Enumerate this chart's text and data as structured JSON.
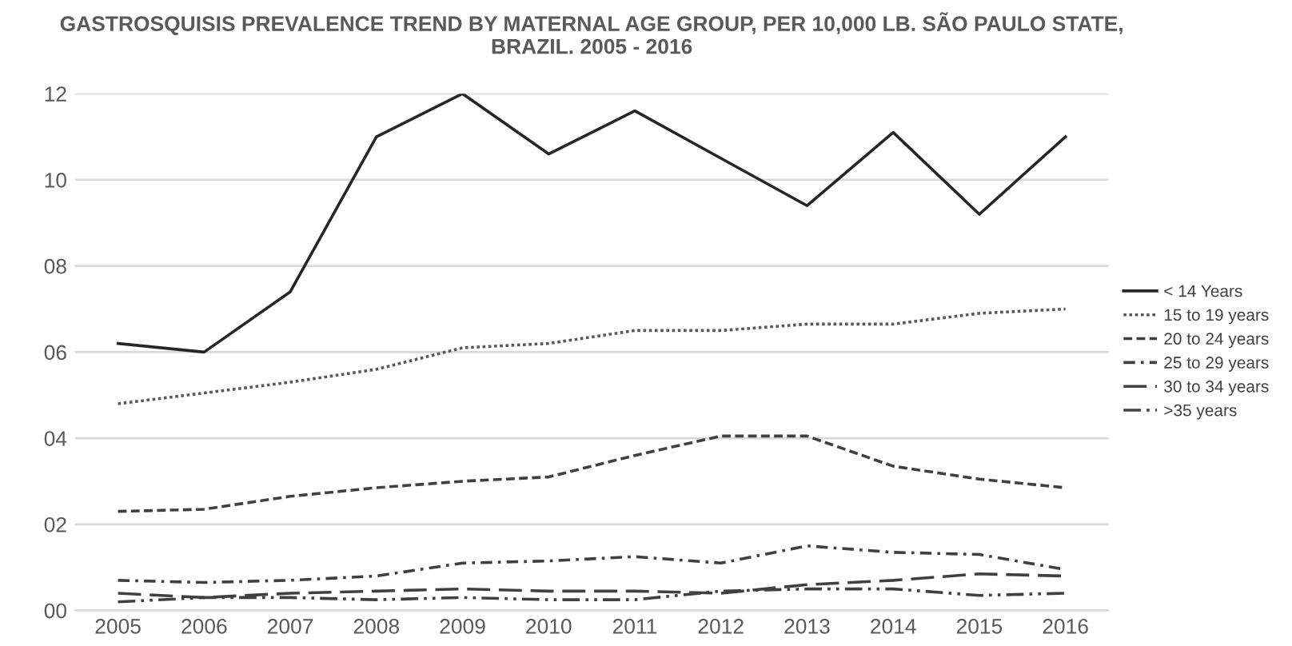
{
  "chart_data": {
    "type": "line",
    "title": "GASTROSQUISIS PREVALENCE TREND BY MATERNAL AGE GROUP, PER 10,000 LB. SÃO PAULO STATE,\nBRAZIL. 2005 - 2016",
    "categories": [
      "2005",
      "2006",
      "2007",
      "2008",
      "2009",
      "2010",
      "2011",
      "2012",
      "2013",
      "2014",
      "2015",
      "2016"
    ],
    "series": [
      {
        "name": "< 14 Years",
        "color": "#262626",
        "line_style": "solid",
        "values": [
          6.2,
          6.0,
          7.4,
          11.0,
          12.0,
          10.6,
          11.6,
          10.5,
          9.4,
          11.1,
          9.2,
          11.0
        ]
      },
      {
        "name": "15 to 19 years",
        "color": "#595959",
        "line_style": "dotted",
        "values": [
          4.8,
          5.05,
          5.3,
          5.6,
          6.1,
          6.2,
          6.5,
          6.5,
          6.65,
          6.65,
          6.9,
          7.0
        ]
      },
      {
        "name": "20 to 24 years",
        "color": "#404040",
        "line_style": "dashed",
        "values": [
          2.3,
          2.35,
          2.65,
          2.85,
          3.0,
          3.1,
          3.6,
          4.05,
          4.05,
          3.35,
          3.05,
          2.85
        ]
      },
      {
        "name": "25 to 29 years",
        "color": "#404040",
        "line_style": "dashdot",
        "values": [
          0.7,
          0.65,
          0.7,
          0.8,
          1.1,
          1.15,
          1.25,
          1.1,
          1.5,
          1.35,
          1.3,
          0.95
        ]
      },
      {
        "name": "30 to 34 years",
        "color": "#404040",
        "line_style": "longdash",
        "values": [
          0.4,
          0.3,
          0.4,
          0.45,
          0.5,
          0.45,
          0.45,
          0.4,
          0.6,
          0.7,
          0.85,
          0.8
        ]
      },
      {
        "name": ">35 years",
        "color": "#404040",
        "line_style": "dashdotdot",
        "values": [
          0.2,
          0.3,
          0.3,
          0.25,
          0.3,
          0.25,
          0.25,
          0.45,
          0.5,
          0.5,
          0.35,
          0.4
        ]
      }
    ],
    "ylim": [
      0,
      12
    ],
    "yticks": [
      {
        "value": 0,
        "label": "00"
      },
      {
        "value": 2,
        "label": "02"
      },
      {
        "value": 4,
        "label": "04"
      },
      {
        "value": 6,
        "label": "06"
      },
      {
        "value": 8,
        "label": "08"
      },
      10,
      12
    ],
    "grid": "y",
    "legend": "right",
    "marker": "none"
  }
}
